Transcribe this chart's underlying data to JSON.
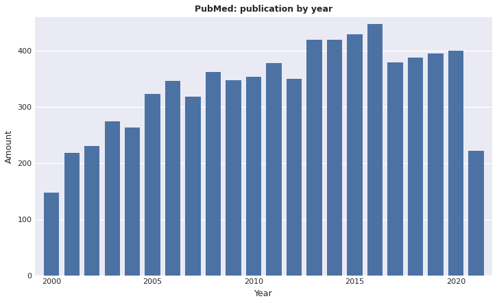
{
  "title": "PubMed: publication by year",
  "xlabel": "Year",
  "ylabel": "Amount",
  "years": [
    2000,
    2001,
    2002,
    2003,
    2004,
    2005,
    2006,
    2007,
    2008,
    2009,
    2010,
    2011,
    2012,
    2013,
    2014,
    2015,
    2016,
    2017,
    2018,
    2019,
    2020,
    2021
  ],
  "values": [
    148,
    218,
    230,
    275,
    263,
    324,
    347,
    318,
    362,
    348,
    354,
    378,
    350,
    420,
    420,
    430,
    448,
    380,
    388,
    395,
    400,
    222
  ],
  "bar_color": "#4c72a4",
  "background_color": "#eaeaf4",
  "fig_background_color": "#ffffff",
  "grid_color": "#ffffff",
  "ylim": [
    0,
    460
  ],
  "yticks": [
    0,
    100,
    200,
    300,
    400
  ],
  "xticks": [
    2000,
    2005,
    2010,
    2015,
    2020
  ],
  "title_fontsize": 9,
  "axis_label_fontsize": 9,
  "tick_fontsize": 8
}
